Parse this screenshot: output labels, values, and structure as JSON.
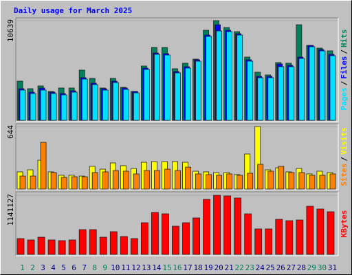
{
  "legend_separator": "/",
  "chart_data": [
    {
      "type": "bar",
      "title": "Daily usage for March 2025",
      "ylim": [
        0,
        10639
      ],
      "yticks": [
        10639
      ],
      "series": [
        {
          "name": "Hits",
          "color": "#00805c",
          "values": [
            4182,
            3375,
            3669,
            3082,
            3449,
            3449,
            5356,
            4476,
            3449,
            4476,
            3522,
            3082,
            5796,
            7777,
            7777,
            5503,
            6090,
            6530,
            9612,
            10639,
            9905,
            9465,
            6750,
            5136,
            4843,
            6163,
            6090,
            10199,
            7998,
            7704,
            7411
          ]
        },
        {
          "name": "Files",
          "color": "#0000ff",
          "values": [
            3375,
            3008,
            3448,
            3008,
            2862,
            3155,
            4549,
            3962,
            3375,
            4182,
            3449,
            3082,
            5576,
            7191,
            7117,
            5210,
            5723,
            6457,
            9098,
            10198,
            9612,
            9245,
            6457,
            4696,
            4696,
            6016,
            5870,
            6750,
            7997,
            7557,
            7044
          ]
        },
        {
          "name": "Pages",
          "color": "#00e0ff",
          "values": [
            3228,
            2862,
            3228,
            2862,
            2715,
            3008,
            4402,
            3815,
            3228,
            4035,
            3302,
            2935,
            5429,
            7044,
            6970,
            5063,
            5576,
            6310,
            8951,
            9538,
            9465,
            9098,
            6310,
            4549,
            4549,
            5723,
            5723,
            6603,
            7851,
            7410,
            6897
          ]
        }
      ]
    },
    {
      "type": "bar",
      "ylim": [
        0,
        644
      ],
      "yticks": [
        644
      ],
      "series": [
        {
          "name": "Visits",
          "color": "#ffff00",
          "values": [
            177,
            198,
            297,
            177,
            142,
            142,
            134,
            234,
            205,
            269,
            241,
            212,
            276,
            283,
            283,
            283,
            276,
            184,
            177,
            170,
            170,
            149,
            361,
            644,
            198,
            219,
            177,
            212,
            156,
            184,
            170
          ]
        },
        {
          "name": "Sites",
          "color": "#ff8000",
          "values": [
            134,
            134,
            481,
            170,
            120,
            127,
            127,
            170,
            177,
            191,
            184,
            156,
            191,
            191,
            205,
            191,
            226,
            156,
            149,
            142,
            156,
            142,
            163,
            255,
            184,
            234,
            170,
            170,
            142,
            142,
            156
          ]
        }
      ]
    },
    {
      "type": "bar",
      "ylim": [
        0,
        1141127
      ],
      "yticks": [
        1141127
      ],
      "categories": [
        "1",
        "2",
        "3",
        "4",
        "5",
        "6",
        "7",
        "8",
        "9",
        "10",
        "11",
        "12",
        "13",
        "14",
        "15",
        "16",
        "17",
        "18",
        "19",
        "20",
        "21",
        "22",
        "23",
        "24",
        "25",
        "26",
        "27",
        "28",
        "29",
        "30",
        "31"
      ],
      "category_colors": [
        "#00805c",
        "#00805c",
        "#000080",
        "#000080",
        "#000080",
        "#000080",
        "#000080",
        "#00805c",
        "#00805c",
        "#000080",
        "#000080",
        "#000080",
        "#000080",
        "#000080",
        "#00805c",
        "#00805c",
        "#000080",
        "#000080",
        "#000080",
        "#000080",
        "#000080",
        "#00805c",
        "#00805c",
        "#000080",
        "#000080",
        "#000080",
        "#000080",
        "#000080",
        "#00805c",
        "#00805c",
        "#000080"
      ],
      "series": [
        {
          "name": "KBytes",
          "color": "#ff0000",
          "values": [
            305187,
            278649,
            331725,
            278649,
            265380,
            278649,
            477684,
            477684,
            331725,
            437877,
            344994,
            305187,
            610374,
            809409,
            782871,
            544029,
            610374,
            703257,
            1061520,
            1141127,
            1127865,
            1088058,
            782871,
            490953,
            490953,
            676719,
            650181,
            663450,
            928830,
            875754,
            822678
          ]
        }
      ]
    }
  ]
}
